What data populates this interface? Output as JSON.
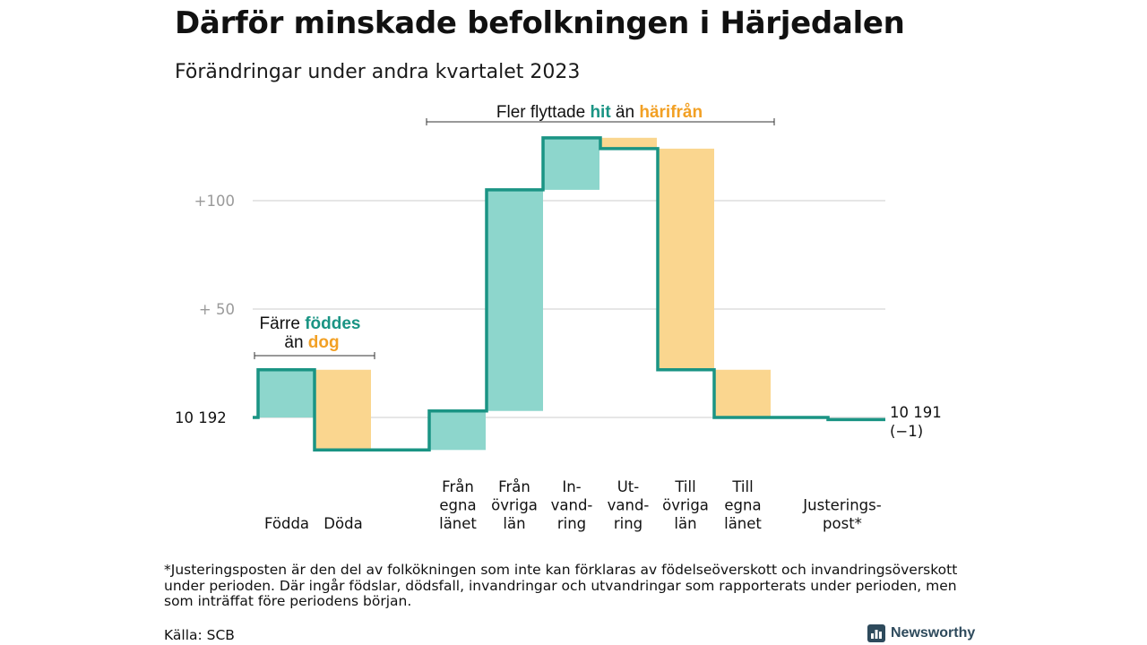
{
  "title": "Därför minskade befolkningen i Härjedalen",
  "subtitle": "Förändringar under andra kvartalet 2023",
  "chart_data": {
    "type": "waterfall",
    "start_value": 10192,
    "start_label": "10 192",
    "end_label": "10 191",
    "end_change_label": "(−1)",
    "yticks": [
      {
        "value": 100,
        "label": "+100"
      },
      {
        "value": 50,
        "label": "+  50"
      }
    ],
    "steps": [
      {
        "name": "Födda",
        "label_lines": [
          "Födda"
        ],
        "change": 22,
        "color": "teal"
      },
      {
        "name": "Döda",
        "label_lines": [
          "Döda"
        ],
        "change": -37,
        "color": "orange"
      },
      {
        "name": "Från egna länet",
        "label_lines": [
          "Från",
          "egna",
          "länet"
        ],
        "change": 18,
        "color": "teal"
      },
      {
        "name": "Från övriga län",
        "label_lines": [
          "Från",
          "övriga",
          "län"
        ],
        "change": 102,
        "color": "teal"
      },
      {
        "name": "Invandring",
        "label_lines": [
          "In-",
          "vand-",
          "ring"
        ],
        "change": 24,
        "color": "teal"
      },
      {
        "name": "Utvandring",
        "label_lines": [
          "Ut-",
          "vand-",
          "ring"
        ],
        "change": -5,
        "color": "orange"
      },
      {
        "name": "Till övriga län",
        "label_lines": [
          "Till",
          "övriga",
          "län"
        ],
        "change": -102,
        "color": "orange"
      },
      {
        "name": "Till egna länet",
        "label_lines": [
          "Till",
          "egna",
          "länet"
        ],
        "change": -22,
        "color": "orange"
      },
      {
        "name": "Justeringspost*",
        "label_lines": [
          "Justerings-",
          "post*"
        ],
        "change": -1,
        "color": "none"
      }
    ],
    "annotations": [
      {
        "parts": [
          {
            "text": "Färre ",
            "style": "plain"
          },
          {
            "text": "föddes",
            "style": "teal"
          }
        ],
        "parts2": [
          {
            "text": "än ",
            "style": "plain"
          },
          {
            "text": "dog",
            "style": "orange"
          }
        ]
      },
      {
        "parts": [
          {
            "text": "Fler flyttade ",
            "style": "plain"
          },
          {
            "text": "hit",
            "style": "teal"
          },
          {
            "text": " än ",
            "style": "plain"
          },
          {
            "text": "härifrån",
            "style": "orange"
          }
        ]
      }
    ],
    "colors": {
      "teal": "#8dd6cc",
      "orange": "#fad68f",
      "line": "#1a9484",
      "teal_text": "#1a9484",
      "orange_text": "#f2a024",
      "grid": "#dddddd"
    }
  },
  "footnote": "*Justeringsposten är den del av folkökningen som inte kan förklaras av födelseöverskott och invandringsöverskott under perioden. Där ingår födslar, dödsfall, invandringar och utvandringar som rapporterats under perioden, men som inträffat före periodens början.",
  "source": "Källa: SCB",
  "brand": {
    "name": "Newsworthy",
    "icon": "bar-chart-logo-icon",
    "color": "#2e4a5c"
  }
}
